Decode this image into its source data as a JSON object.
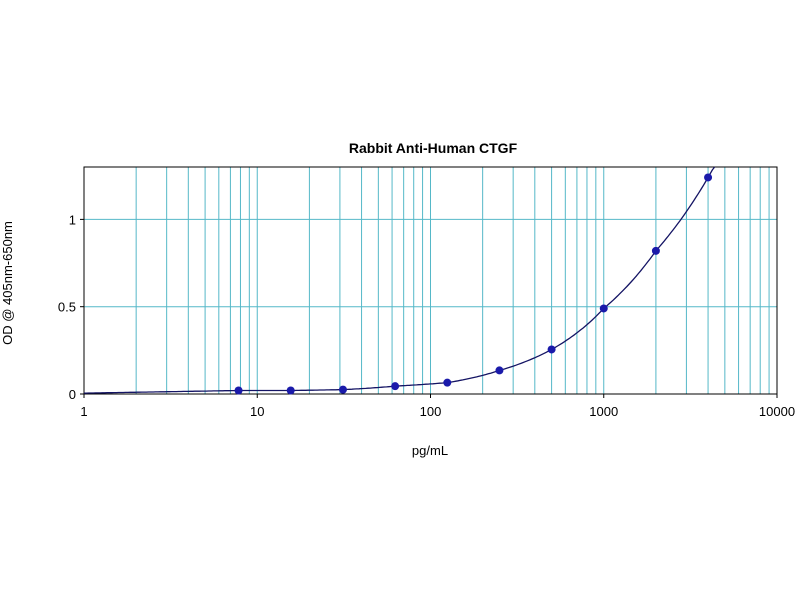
{
  "chart_data": {
    "type": "scatter",
    "title": "Rabbit Anti-Human CTGF",
    "xlabel": "pg/mL",
    "ylabel": "OD @ 405nm-650nm",
    "x_scale": "log",
    "xlim": [
      1,
      10000
    ],
    "ylim": [
      0,
      1.3
    ],
    "x_ticks": [
      1,
      10,
      100,
      1000,
      10000
    ],
    "x_tick_labels": [
      "1",
      "10",
      "100",
      "1000",
      "10000"
    ],
    "y_ticks": [
      0,
      0.5,
      1
    ],
    "y_tick_labels": [
      "0",
      "0.5",
      "1"
    ],
    "grid": true,
    "series": [
      {
        "x": [
          7.8,
          15.6,
          31.25,
          62.5,
          125,
          250,
          500,
          1000,
          2000,
          4000
        ],
        "y": [
          0.02,
          0.02,
          0.025,
          0.045,
          0.065,
          0.135,
          0.255,
          0.49,
          0.82,
          1.24
        ],
        "fit_curve": true
      }
    ],
    "colors": {
      "grid": "#55b8c8",
      "points": "#1a1aaa",
      "curve": "#141464",
      "frame": "#000000"
    }
  }
}
